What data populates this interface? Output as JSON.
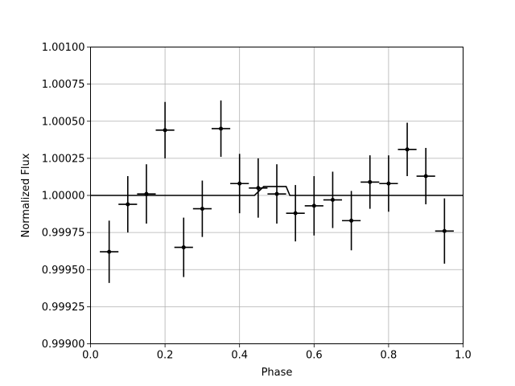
{
  "chart_data": {
    "type": "scatter",
    "title": "",
    "xlabel": "Phase",
    "ylabel": "Normalized Flux",
    "xlim": [
      0.0,
      1.0
    ],
    "ylim": [
      0.999,
      1.001
    ],
    "grid": true,
    "xticks": [
      0.0,
      0.2,
      0.4,
      0.6,
      0.8,
      1.0
    ],
    "xtick_labels": [
      "0.0",
      "0.2",
      "0.4",
      "0.6",
      "0.8",
      "1.0"
    ],
    "yticks": [
      0.999,
      0.99925,
      0.9995,
      0.99975,
      1.0,
      1.00025,
      1.0005,
      1.00075,
      1.001
    ],
    "ytick_labels": [
      "0.99900",
      "0.99925",
      "0.99950",
      "0.99975",
      "1.00000",
      "1.00025",
      "1.00050",
      "1.00075",
      "1.00100"
    ],
    "series": [
      {
        "kind": "errorbar",
        "color": "#000000",
        "x": [
          0.05,
          0.1,
          0.15,
          0.2,
          0.25,
          0.3,
          0.35,
          0.4,
          0.45,
          0.5,
          0.55,
          0.6,
          0.65,
          0.7,
          0.75,
          0.8,
          0.85,
          0.9,
          0.95
        ],
        "xerr": 0.025,
        "y": [
          0.99962,
          0.99994,
          1.00001,
          1.00044,
          0.99965,
          0.99991,
          1.00045,
          1.00008,
          1.00005,
          1.00001,
          0.99988,
          0.99993,
          0.99997,
          0.99983,
          1.00009,
          1.00008,
          1.00031,
          1.00013,
          0.99976
        ],
        "yerr": [
          0.00021,
          0.00019,
          0.0002,
          0.00019,
          0.0002,
          0.00019,
          0.00019,
          0.0002,
          0.0002,
          0.0002,
          0.00019,
          0.0002,
          0.00019,
          0.0002,
          0.00018,
          0.00019,
          0.00018,
          0.00019,
          0.00022
        ]
      },
      {
        "kind": "line",
        "color": "#000000",
        "x": [
          0.0,
          0.44,
          0.465,
          0.525,
          0.535,
          1.0
        ],
        "y": [
          1.0,
          1.0,
          1.00006,
          1.00006,
          1.0,
          1.0
        ]
      }
    ]
  }
}
